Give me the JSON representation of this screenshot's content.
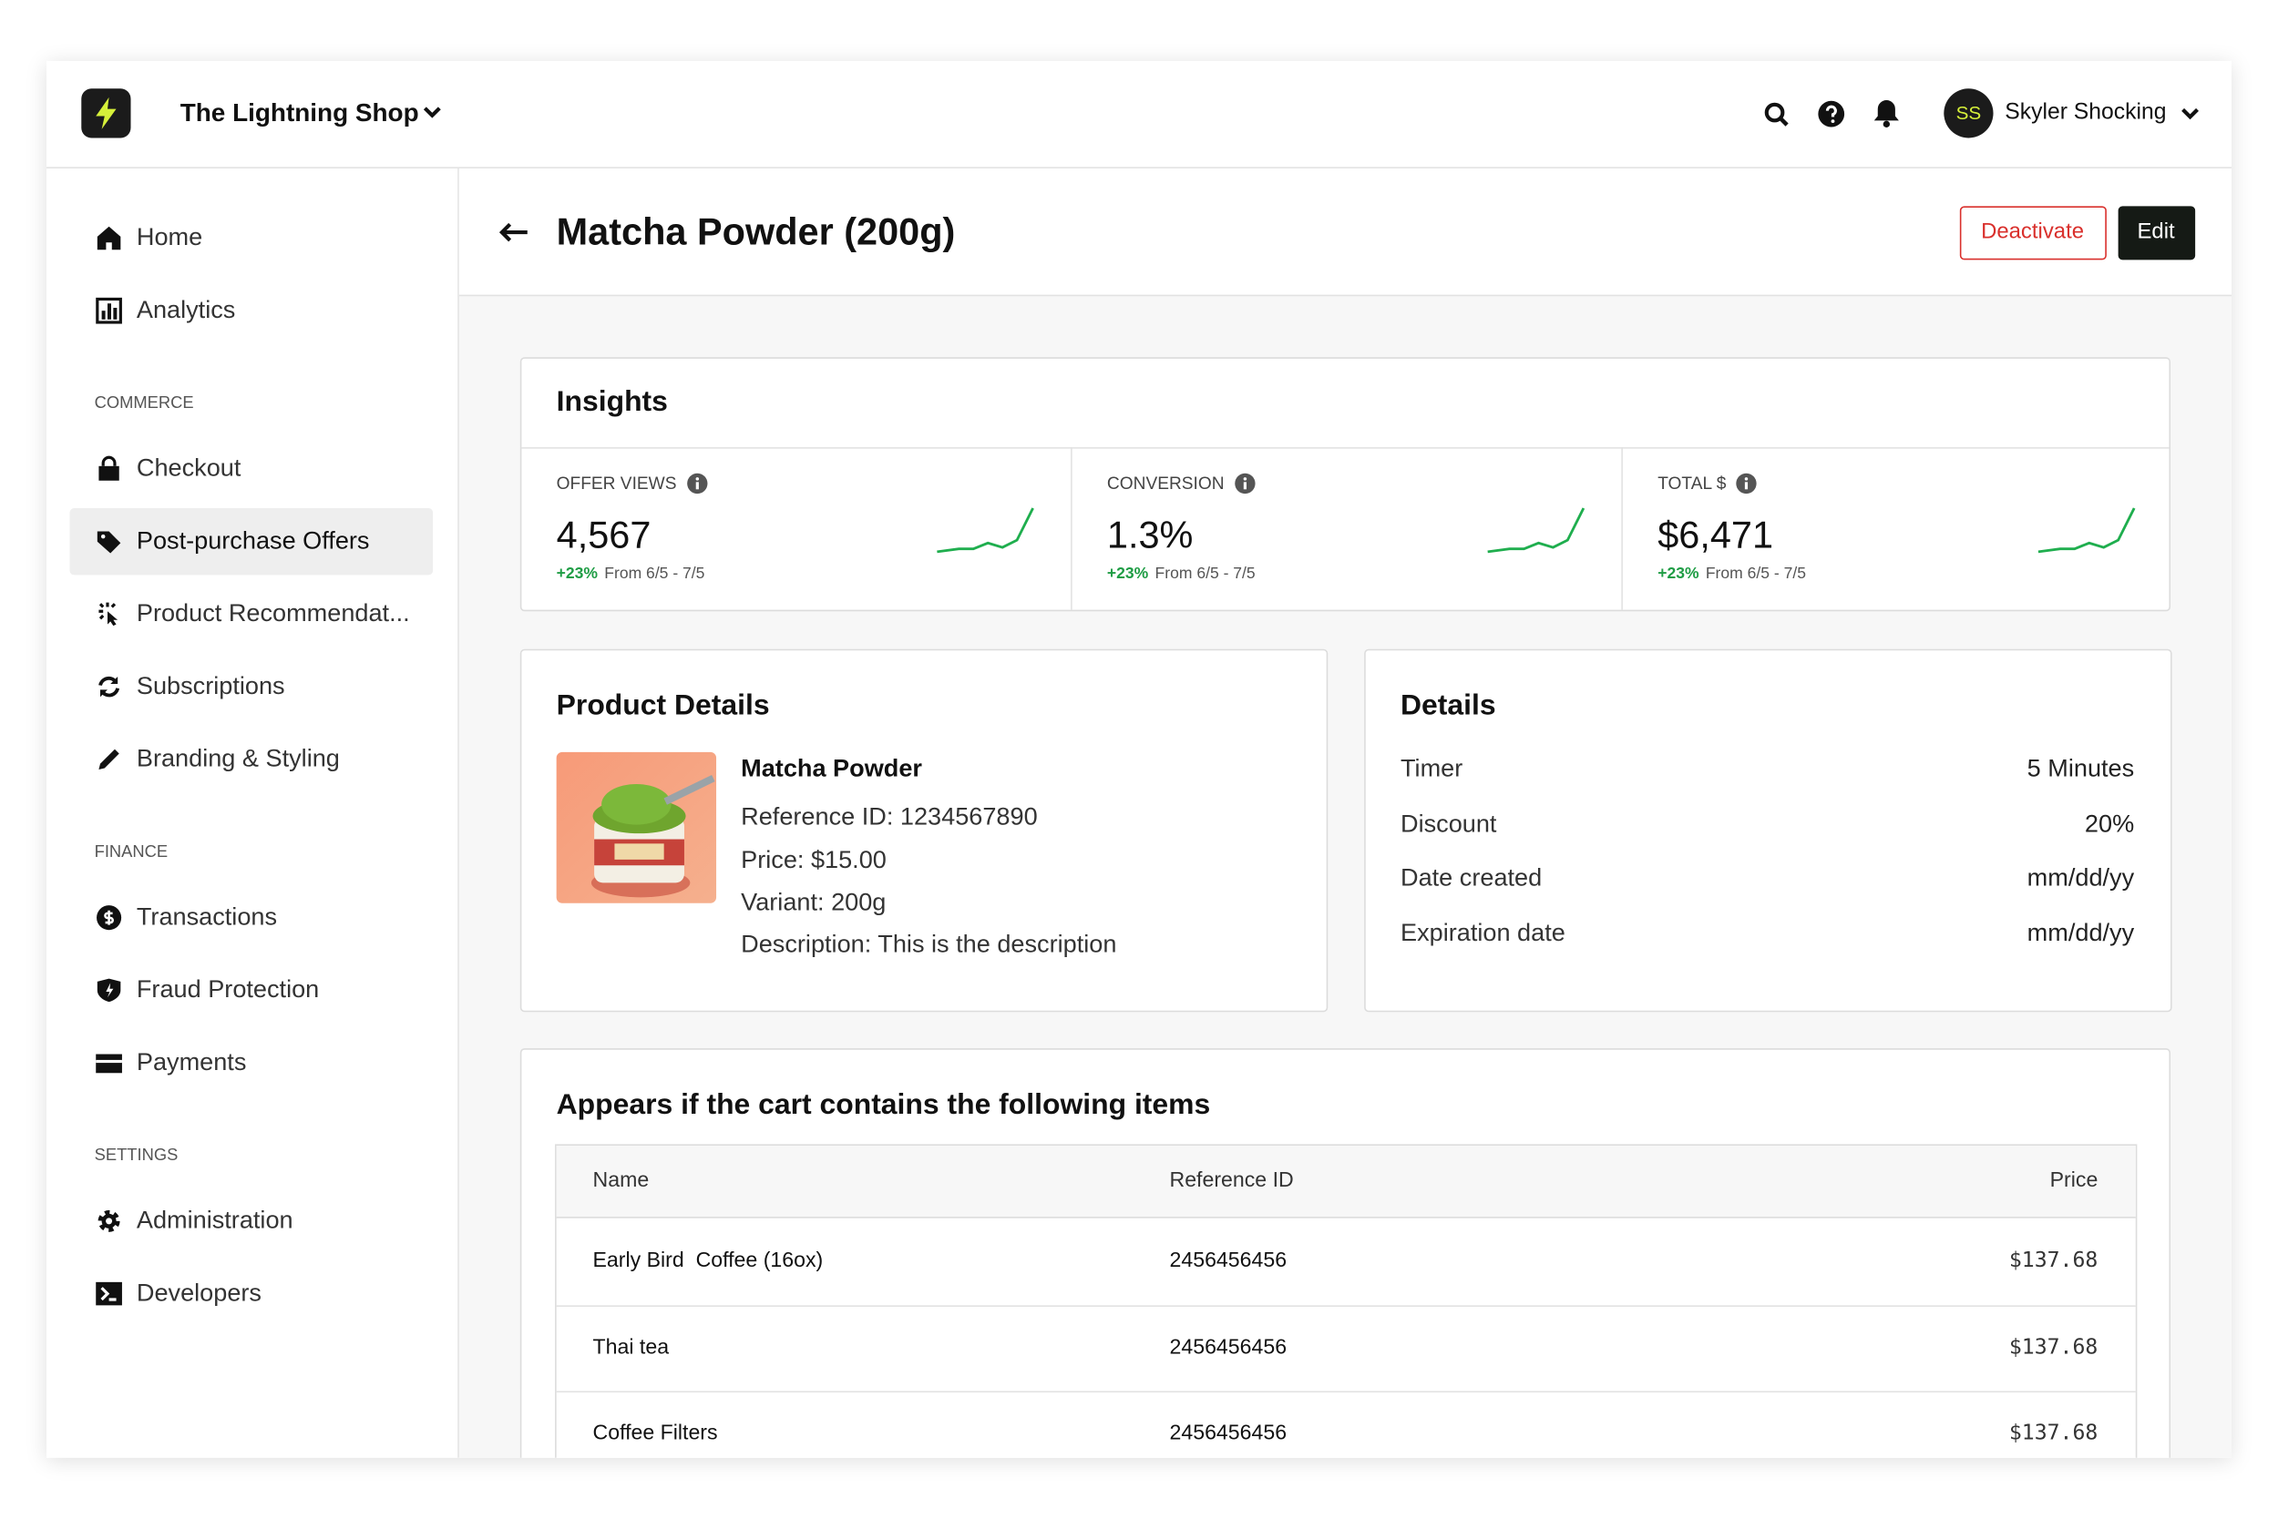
{
  "header": {
    "shop_name": "The Lightning Shop",
    "user_initials": "SS",
    "user_name": "Skyler Shocking"
  },
  "nav": {
    "main": [
      "Home",
      "Analytics"
    ],
    "sections": [
      {
        "heading": "COMMERCE",
        "items": [
          "Checkout",
          "Post-purchase Offers",
          "Product Recommendat...",
          "Subscriptions",
          "Branding & Styling"
        ]
      },
      {
        "heading": "FINANCE",
        "items": [
          "Transactions",
          "Fraud Protection",
          "Payments"
        ]
      },
      {
        "heading": "SETTINGS",
        "items": [
          "Administration",
          "Developers"
        ]
      }
    ]
  },
  "page": {
    "title": "Matcha Powder (200g)",
    "actions": [
      "Deactivate",
      "Edit"
    ]
  },
  "insights": {
    "title": "Insights",
    "metrics": [
      {
        "label": "OFFER VIEWS",
        "value": "4,567",
        "change": "+23%",
        "period": "From 6/5 - 7/5"
      },
      {
        "label": "CONVERSION",
        "value": "1.3%",
        "change": "+23%",
        "period": "From 6/5 - 7/5"
      },
      {
        "label": "TOTAL $",
        "value": "$6,471",
        "change": "+23%",
        "period": "From 6/5 - 7/5"
      }
    ]
  },
  "product_details": {
    "title": "Product Details",
    "name": "Matcha Powder",
    "lines": [
      "Reference ID: 1234567890",
      "Price: $15.00",
      "Variant: 200g",
      "Description: This is the description"
    ]
  },
  "details": {
    "title": "Details",
    "rows": [
      [
        "Timer",
        "5 Minutes"
      ],
      [
        "Discount",
        "20%"
      ],
      [
        "Date created",
        "mm/dd/yy"
      ],
      [
        "Expiration date",
        "mm/dd/yy"
      ]
    ]
  },
  "cart_items": {
    "title": "Appears if the cart contains the following items",
    "columns": [
      "Name",
      "Reference ID",
      "Price"
    ],
    "rows": [
      [
        "Early Bird  Coffee (16ox)",
        "2456456456",
        "$137.68"
      ],
      [
        "Thai tea",
        "2456456456",
        "$137.68"
      ],
      [
        "Coffee Filters",
        "2456456456",
        "$137.68"
      ]
    ]
  }
}
